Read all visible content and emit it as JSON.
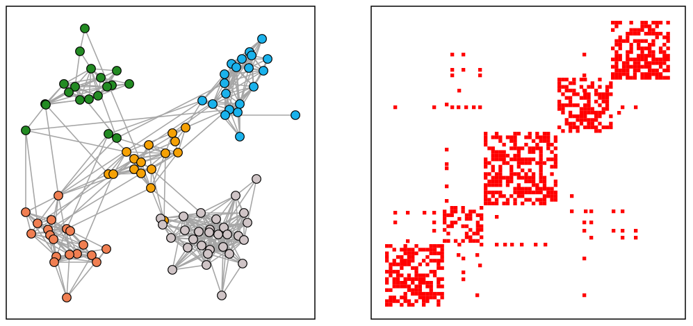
{
  "figure": {
    "left_panel": {
      "kind": "network graph",
      "edge_color": "#a6a6a6"
    },
    "right_panel": {
      "kind": "adjacency matrix",
      "cell_color": "#ff0000"
    }
  },
  "communities": [
    {
      "id": "green",
      "color": "#238b23"
    },
    {
      "id": "blue",
      "color": "#1ab2ec"
    },
    {
      "id": "orange",
      "color": "#f5a105"
    },
    {
      "id": "salmon",
      "color": "#f07f52"
    },
    {
      "id": "lilac",
      "color": "#cfc4c6"
    }
  ],
  "matrix_blocks_order": [
    "blue",
    "green",
    "orange",
    "salmon",
    "lilac"
  ]
}
